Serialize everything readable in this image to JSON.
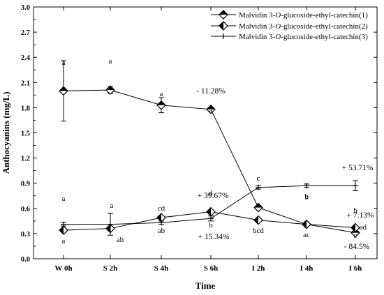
{
  "chart_data": {
    "type": "line",
    "xlabel": "Time",
    "ylabel": "Anthocyanins (mg/L)",
    "categories": [
      "W 0h",
      "S 2h",
      "S 4h",
      "S 6h",
      "I 2h",
      "I 4h",
      "I 6h"
    ],
    "ylim": [
      0,
      3.0
    ],
    "yticks": [
      "0.0",
      "0.3",
      "0.6",
      "0.9",
      "1.2",
      "1.5",
      "1.8",
      "2.1",
      "2.4",
      "2.7",
      "3.0"
    ],
    "grid": false,
    "legend_position": "top-right",
    "series": [
      {
        "name": "Malvidin 3-O-glucoside-ethyl-catechin(1)",
        "name_parts": [
          "Malvidin 3-",
          "O",
          "-glucoside-ethyl-catechin(1)"
        ],
        "marker": "diamond-filled",
        "values": [
          2.0,
          2.01,
          1.83,
          1.78,
          0.61,
          0.41,
          0.31
        ],
        "errors": [
          0.36,
          0.04,
          0.09,
          0.02,
          0.02,
          0.01,
          0.01
        ],
        "letters": [
          "a",
          "a",
          "a",
          "a",
          "c",
          "b",
          "b"
        ]
      },
      {
        "name": "Malvidin 3-O-glucoside-ethyl-catechin(2)",
        "name_parts": [
          "Malvidin 3-",
          "O",
          "-glucoside-ethyl-catechin(2)"
        ],
        "marker": "diamond-half",
        "values": [
          0.34,
          0.36,
          0.49,
          0.56,
          0.46,
          0.41,
          0.37
        ],
        "errors": [
          0.02,
          0.02,
          0.02,
          0.02,
          0.02,
          0.01,
          0.01
        ],
        "letters": [
          "a",
          "a",
          "cd",
          "d",
          "bcd",
          "b",
          "ad"
        ]
      },
      {
        "name": "Malvidin 3-O-glucoside-ethyl-catechin(3)",
        "name_parts": [
          "Malvidin 3-",
          "O",
          "-glucoside-ethyl-catechin(3)"
        ],
        "marker": "plus",
        "values": [
          0.41,
          0.41,
          0.43,
          0.48,
          0.85,
          0.87,
          0.87
        ],
        "errors": [
          0.02,
          0.13,
          0.02,
          0.03,
          0.02,
          0.02,
          0.06
        ],
        "letters": [
          "a",
          "ab",
          "ab",
          "b",
          "c",
          "ac",
          "c"
        ]
      }
    ],
    "annotations": [
      "- 11.28%",
      "+ 39.67%",
      "+ 15.34%",
      "+ 53.71%",
      "+ 7.13%",
      "- 84.5%"
    ]
  }
}
